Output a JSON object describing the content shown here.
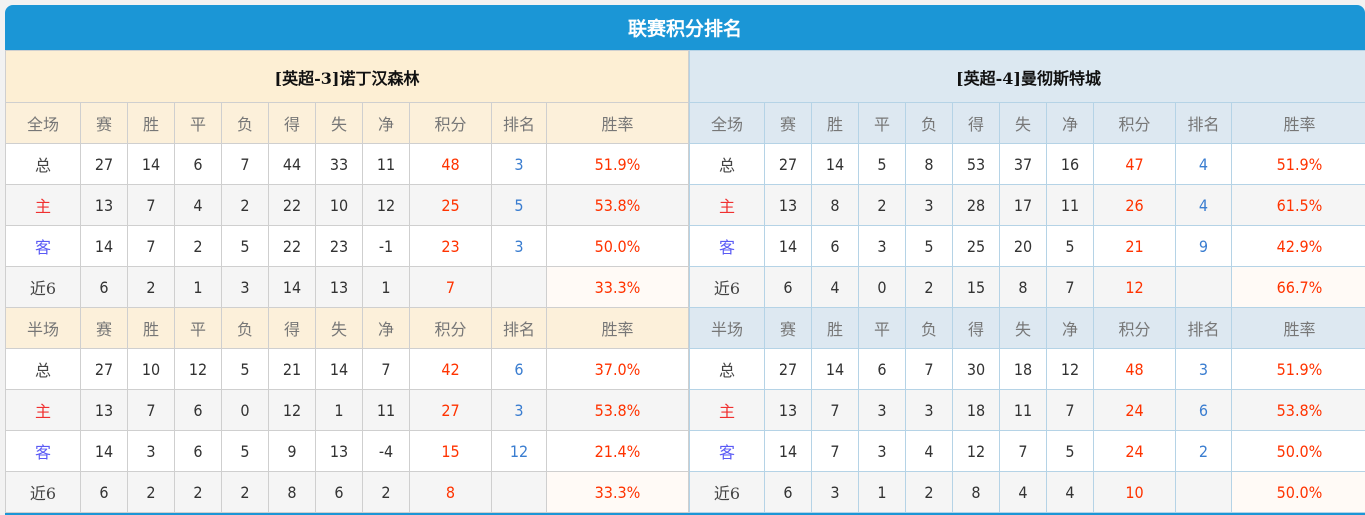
{
  "title": "联赛积分排名",
  "colors": {
    "header": "#1b96d6",
    "points": "#ff3300",
    "rank": "#3a7dd0",
    "home": "#f03030",
    "away": "#5a5af5"
  },
  "columns": [
    "赛",
    "胜",
    "平",
    "负",
    "得",
    "失",
    "净",
    "积分",
    "排名",
    "胜率"
  ],
  "teams": [
    {
      "name": "[英超-3]诺丁汉森林",
      "sections": [
        {
          "label": "全场",
          "rows": [
            [
              "总",
              "27",
              "14",
              "6",
              "7",
              "44",
              "33",
              "11",
              "48",
              "3",
              "51.9%"
            ],
            [
              "主",
              "13",
              "7",
              "4",
              "2",
              "22",
              "10",
              "12",
              "25",
              "5",
              "53.8%"
            ],
            [
              "客",
              "14",
              "7",
              "2",
              "5",
              "22",
              "23",
              "-1",
              "23",
              "3",
              "50.0%"
            ],
            [
              "近6",
              "6",
              "2",
              "1",
              "3",
              "14",
              "13",
              "1",
              "7",
              "",
              "33.3%"
            ]
          ]
        },
        {
          "label": "半场",
          "rows": [
            [
              "总",
              "27",
              "10",
              "12",
              "5",
              "21",
              "14",
              "7",
              "42",
              "6",
              "37.0%"
            ],
            [
              "主",
              "13",
              "7",
              "6",
              "0",
              "12",
              "1",
              "11",
              "27",
              "3",
              "53.8%"
            ],
            [
              "客",
              "14",
              "3",
              "6",
              "5",
              "9",
              "13",
              "-4",
              "15",
              "12",
              "21.4%"
            ],
            [
              "近6",
              "6",
              "2",
              "2",
              "2",
              "8",
              "6",
              "2",
              "8",
              "",
              "33.3%"
            ]
          ]
        }
      ]
    },
    {
      "name": "[英超-4]曼彻斯特城",
      "sections": [
        {
          "label": "全场",
          "rows": [
            [
              "总",
              "27",
              "14",
              "5",
              "8",
              "53",
              "37",
              "16",
              "47",
              "4",
              "51.9%"
            ],
            [
              "主",
              "13",
              "8",
              "2",
              "3",
              "28",
              "17",
              "11",
              "26",
              "4",
              "61.5%"
            ],
            [
              "客",
              "14",
              "6",
              "3",
              "5",
              "25",
              "20",
              "5",
              "21",
              "9",
              "42.9%"
            ],
            [
              "近6",
              "6",
              "4",
              "0",
              "2",
              "15",
              "8",
              "7",
              "12",
              "",
              "66.7%"
            ]
          ]
        },
        {
          "label": "半场",
          "rows": [
            [
              "总",
              "27",
              "14",
              "6",
              "7",
              "30",
              "18",
              "12",
              "48",
              "3",
              "51.9%"
            ],
            [
              "主",
              "13",
              "7",
              "3",
              "3",
              "18",
              "11",
              "7",
              "24",
              "6",
              "53.8%"
            ],
            [
              "客",
              "14",
              "7",
              "3",
              "4",
              "12",
              "7",
              "5",
              "24",
              "2",
              "50.0%"
            ],
            [
              "近6",
              "6",
              "3",
              "1",
              "2",
              "8",
              "4",
              "4",
              "10",
              "",
              "50.0%"
            ]
          ]
        }
      ]
    }
  ]
}
